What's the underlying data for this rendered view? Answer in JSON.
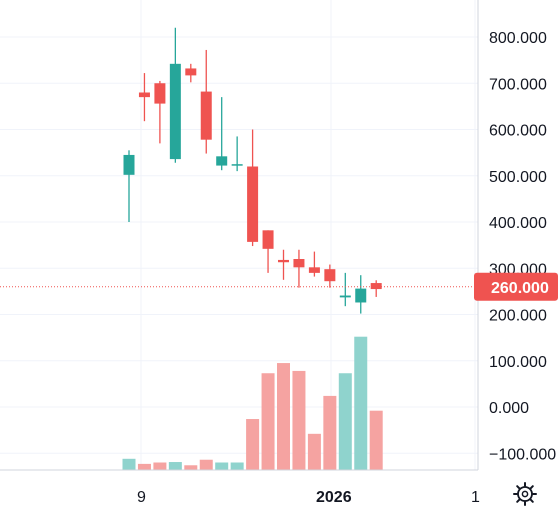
{
  "chart_data": {
    "type": "candlestick",
    "price_axis": {
      "ticks": [
        "800.000",
        "700.000",
        "600.000",
        "500.000",
        "400.000",
        "300.000",
        "200.000",
        "100.000",
        "0.000",
        "−100.000"
      ],
      "tick_values": [
        800,
        700,
        600,
        500,
        400,
        300,
        200,
        100,
        0,
        -100
      ],
      "range": [
        -148,
        840
      ]
    },
    "time_axis": {
      "labels": [
        "9",
        "2026",
        "1"
      ]
    },
    "current_price": {
      "label": "260.000",
      "value": 260
    },
    "colors": {
      "up": "#26a69a",
      "down": "#ef5350",
      "up_volume": "#8fd3cd",
      "down_volume": "#f5a3a1",
      "grid": "#f0f3fa",
      "price_line": "#ef5350"
    },
    "candles": [
      {
        "o": 502,
        "h": 555,
        "l": 400,
        "c": 545
      },
      {
        "o": 680,
        "h": 722,
        "l": 618,
        "c": 670
      },
      {
        "o": 700,
        "h": 705,
        "l": 570,
        "c": 656
      },
      {
        "o": 536,
        "h": 820,
        "l": 528,
        "c": 742
      },
      {
        "o": 732,
        "h": 742,
        "l": 702,
        "c": 717
      },
      {
        "o": 682,
        "h": 772,
        "l": 548,
        "c": 578
      },
      {
        "o": 522,
        "h": 670,
        "l": 512,
        "c": 542
      },
      {
        "o": 522,
        "h": 585,
        "l": 510,
        "c": 525
      },
      {
        "o": 520,
        "h": 600,
        "l": 348,
        "c": 357
      },
      {
        "o": 382,
        "h": 382,
        "l": 290,
        "c": 342
      },
      {
        "o": 318,
        "h": 340,
        "l": 275,
        "c": 313
      },
      {
        "o": 320,
        "h": 340,
        "l": 258,
        "c": 302
      },
      {
        "o": 302,
        "h": 336,
        "l": 282,
        "c": 290
      },
      {
        "o": 298,
        "h": 308,
        "l": 258,
        "c": 272
      },
      {
        "o": 237,
        "h": 290,
        "l": 218,
        "c": 241
      },
      {
        "o": 226,
        "h": 285,
        "l": 202,
        "c": 256
      },
      {
        "o": 268,
        "h": 274,
        "l": 238,
        "c": 255
      }
    ],
    "volumes": [
      {
        "v": -112,
        "dir": "up"
      },
      {
        "v": -123,
        "dir": "down"
      },
      {
        "v": -120,
        "dir": "down"
      },
      {
        "v": -119,
        "dir": "up"
      },
      {
        "v": -126,
        "dir": "down"
      },
      {
        "v": -114,
        "dir": "down"
      },
      {
        "v": -120,
        "dir": "up"
      },
      {
        "v": -120,
        "dir": "up"
      },
      {
        "v": -26,
        "dir": "down"
      },
      {
        "v": 73,
        "dir": "down"
      },
      {
        "v": 95,
        "dir": "down"
      },
      {
        "v": 78,
        "dir": "down"
      },
      {
        "v": -58,
        "dir": "down"
      },
      {
        "v": 24,
        "dir": "down"
      },
      {
        "v": 73,
        "dir": "up"
      },
      {
        "v": 152,
        "dir": "up"
      },
      {
        "v": -8,
        "dir": "down"
      }
    ],
    "grid": true
  },
  "toolbar": {
    "settings_icon": "gear-icon"
  }
}
